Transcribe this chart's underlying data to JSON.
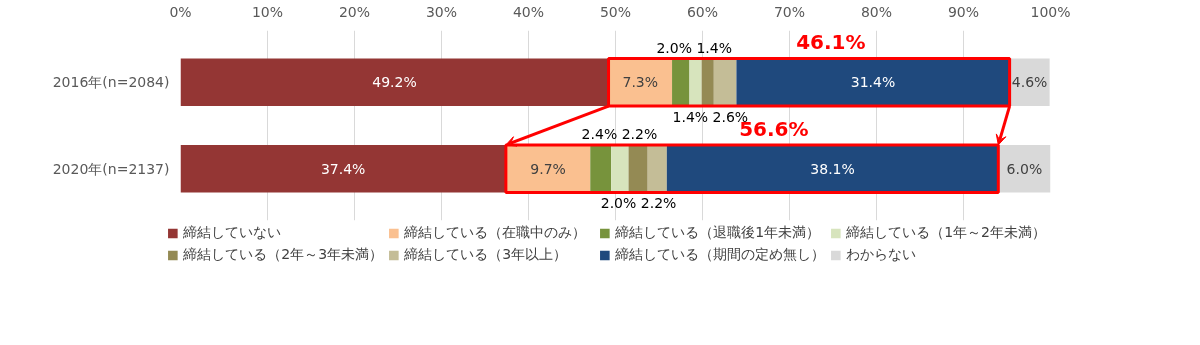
{
  "chart_data": {
    "type": "bar",
    "orientation": "horizontal",
    "stacked": true,
    "grid": "x",
    "legend": "bottom",
    "categories": [
      "2016年(n=2084)",
      "2020年(n=2137)"
    ],
    "xlim": [
      0,
      100
    ],
    "xticks": [
      {
        "value": 0,
        "label": "0%"
      },
      {
        "value": 10,
        "label": "10%"
      },
      {
        "value": 20,
        "label": "20%"
      },
      {
        "value": 30,
        "label": "30%"
      },
      {
        "value": 40,
        "label": "40%"
      },
      {
        "value": 50,
        "label": "50%"
      },
      {
        "value": 60,
        "label": "60%"
      },
      {
        "value": 70,
        "label": "70%"
      },
      {
        "value": 80,
        "label": "80%"
      },
      {
        "value": 90,
        "label": "90%"
      },
      {
        "value": 100,
        "label": "100%"
      }
    ],
    "series": [
      {
        "name": "締結していない",
        "color": "#943634",
        "values": [
          49.2,
          37.4
        ],
        "value_labels": [
          "49.2%",
          "37.4%"
        ]
      },
      {
        "name": "締結している（在職中のみ）",
        "color": "#fac090",
        "values": [
          7.3,
          9.7
        ],
        "value_labels": [
          "7.3%",
          "9.7%"
        ]
      },
      {
        "name": "締結している（退職後1年未満）",
        "color": "#77933c",
        "values": [
          2.0,
          2.4
        ],
        "value_labels": [
          "2.0%",
          "2.4%"
        ]
      },
      {
        "name": "締結している（1年～2年未満）",
        "color": "#d7e4bd",
        "values": [
          1.4,
          2.0
        ],
        "value_labels": [
          "1.4%",
          "2.0%"
        ]
      },
      {
        "name": "締結している（2年～3年未満）",
        "color": "#948a54",
        "values": [
          1.4,
          2.2
        ],
        "value_labels": [
          "1.4%",
          "2.2%"
        ]
      },
      {
        "name": "締結している（3年以上）",
        "color": "#c4bd97",
        "values": [
          2.6,
          2.2
        ],
        "value_labels": [
          "2.6%",
          "2.2%"
        ]
      },
      {
        "name": "締結している（期間の定め無し）",
        "color": "#1f497d",
        "values": [
          31.4,
          38.1
        ],
        "value_labels": [
          "31.4%",
          "38.1%"
        ]
      },
      {
        "name": "わからない",
        "color": "#d9d9d9",
        "values": [
          4.6,
          6.0
        ],
        "value_labels": [
          "4.6%",
          "6.0%"
        ]
      }
    ],
    "annotations": [
      "46.1%",
      "56.6%"
    ]
  }
}
